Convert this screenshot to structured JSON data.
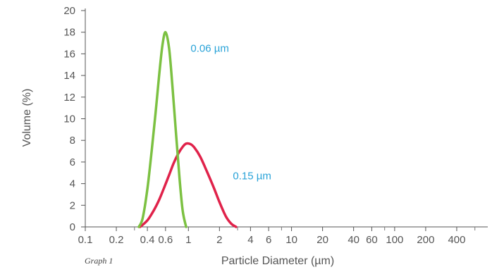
{
  "chart_data": {
    "type": "line",
    "title": "",
    "caption": "Graph 1",
    "xlabel": "Particle Diameter (µm)",
    "ylabel": "Volume (%)",
    "x_scale": "log",
    "xlim": [
      0.1,
      800
    ],
    "ylim": [
      0,
      20
    ],
    "x_ticks": [
      0.1,
      0.2,
      0.4,
      0.6,
      1,
      2,
      4,
      6,
      10,
      20,
      40,
      60,
      100,
      200,
      400
    ],
    "x_tick_labels": [
      "0.1",
      "0.2",
      "0.4",
      "0.6",
      "1",
      "2",
      "4",
      "6",
      "10",
      "20",
      "40",
      "60",
      "100",
      "200",
      "400"
    ],
    "y_ticks": [
      0,
      2,
      4,
      6,
      8,
      10,
      12,
      14,
      16,
      18,
      20
    ],
    "y_tick_labels": [
      "0",
      "2",
      "4",
      "6",
      "8",
      "10",
      "12",
      "14",
      "16",
      "18",
      "20"
    ],
    "grid": false,
    "series": [
      {
        "name": "0.06 µm",
        "color": "#7cc142",
        "x": [
          0.33,
          0.36,
          0.4,
          0.44,
          0.48,
          0.52,
          0.56,
          0.6,
          0.65,
          0.7,
          0.76,
          0.82,
          0.88,
          0.95
        ],
        "y": [
          0,
          0.8,
          3.5,
          7,
          10.5,
          14,
          16.8,
          18,
          16.5,
          13,
          8.5,
          4.5,
          1.5,
          0
        ]
      },
      {
        "name": "0.15 µm",
        "color": "#e0224a",
        "x": [
          0.34,
          0.4,
          0.46,
          0.52,
          0.58,
          0.65,
          0.72,
          0.8,
          0.88,
          0.95,
          1.05,
          1.15,
          1.3,
          1.5,
          1.75,
          2.0,
          2.3,
          2.6,
          2.9
        ],
        "y": [
          0,
          0.6,
          1.5,
          2.5,
          3.6,
          4.8,
          5.9,
          6.8,
          7.4,
          7.7,
          7.65,
          7.3,
          6.5,
          5.2,
          3.7,
          2.3,
          1.0,
          0.3,
          0
        ]
      }
    ],
    "annotations": [
      {
        "text": "0.06 µm",
        "color": "#2aa3d8",
        "x": 1.05,
        "y": 16.2
      },
      {
        "text": "0.15 µm",
        "color": "#2aa3d8",
        "x": 2.7,
        "y": 4.4
      }
    ]
  }
}
